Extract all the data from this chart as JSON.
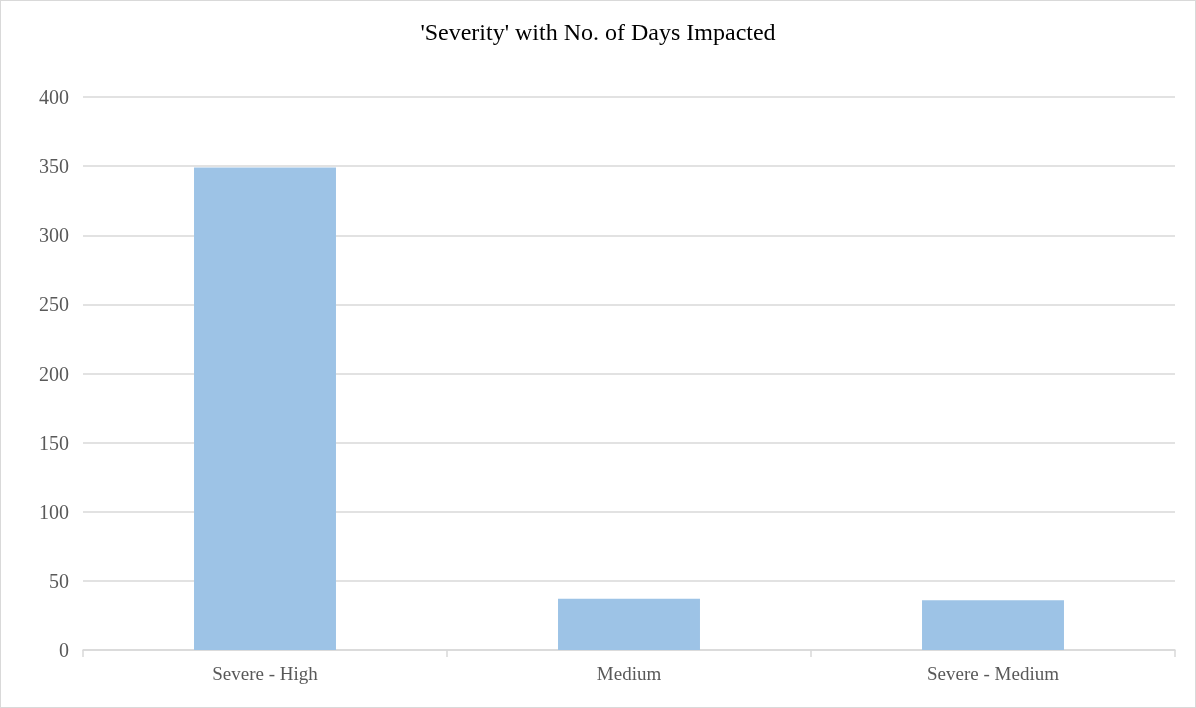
{
  "chart_data": {
    "type": "bar",
    "title": "'Severity' with No. of Days Impacted",
    "categories": [
      "Severe - High",
      "Medium",
      "Severe - Medium"
    ],
    "values": [
      349,
      37,
      36
    ],
    "color": "#9dc3e6",
    "ylim": [
      0,
      400
    ],
    "yticks": [
      0,
      50,
      100,
      150,
      200,
      250,
      300,
      350,
      400
    ],
    "grid": "y"
  }
}
